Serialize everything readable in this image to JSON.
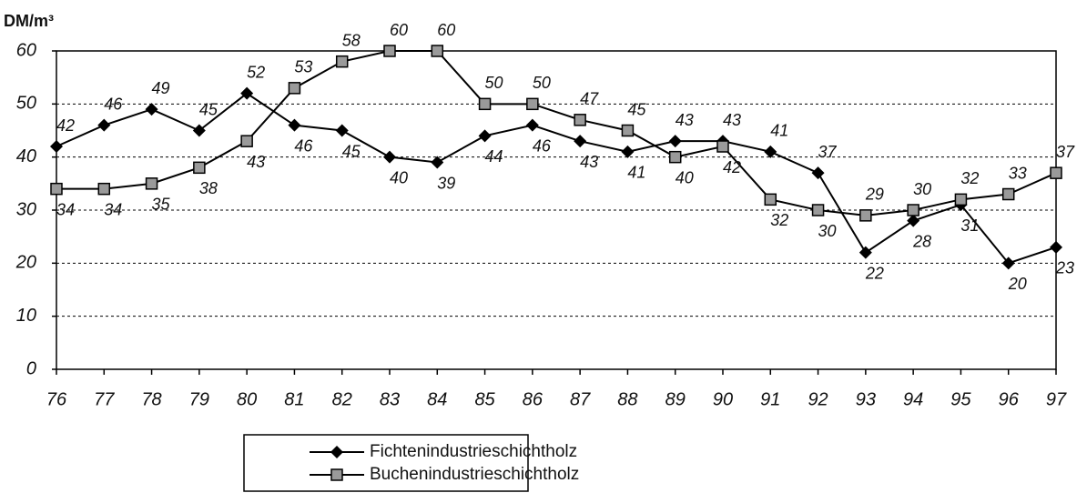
{
  "chart_data": {
    "type": "line",
    "y_label": "DM/m³",
    "categories": [
      "76",
      "77",
      "78",
      "79",
      "80",
      "81",
      "82",
      "83",
      "84",
      "85",
      "86",
      "87",
      "88",
      "89",
      "90",
      "91",
      "92",
      "93",
      "94",
      "95",
      "96",
      "97"
    ],
    "series": [
      {
        "name": "Fichtenindustrieschichtholz",
        "color": "#000000",
        "marker": "diamond",
        "values": [
          42,
          46,
          49,
          45,
          52,
          46,
          45,
          40,
          39,
          44,
          46,
          43,
          41,
          43,
          43,
          41,
          37,
          22,
          28,
          31,
          20,
          23
        ]
      },
      {
        "name": "Buchenindustrieschichtholz",
        "color": "#000000",
        "marker": "square",
        "values": [
          34,
          34,
          35,
          38,
          43,
          53,
          58,
          60,
          60,
          50,
          50,
          47,
          45,
          40,
          42,
          32,
          30,
          29,
          30,
          32,
          33,
          37
        ]
      }
    ],
    "ylim": [
      0,
      60
    ],
    "yticks": [
      0,
      10,
      20,
      30,
      40,
      50,
      60
    ],
    "grid": true
  }
}
